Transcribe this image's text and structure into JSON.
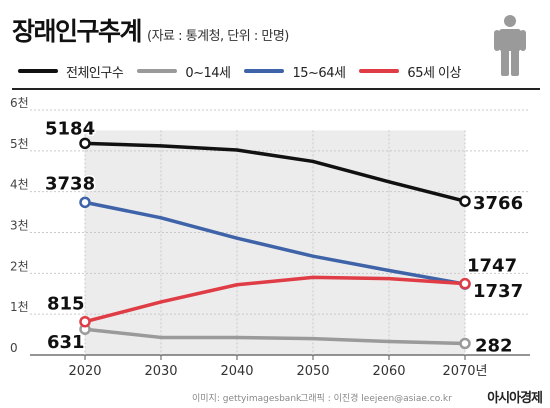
{
  "header": {
    "title": "장래인구추계",
    "subtitle": "(자료 : 통계청, 단위 : 만명)"
  },
  "icons": {
    "person": "person-silhouette-icon"
  },
  "colors": {
    "total": "#111111",
    "age_0_14": "#9a9a9a",
    "age_15_64": "#3f63a8",
    "age_65_plus": "#e03c45",
    "plot_band": "#ececec",
    "grid": "#c9c9c9"
  },
  "chart_data": {
    "type": "line",
    "x": [
      2020,
      2030,
      2040,
      2050,
      2060,
      2070
    ],
    "x_tick_labels": [
      "2020",
      "2030",
      "2040",
      "2050",
      "2060",
      "2070년"
    ],
    "y_ticks": [
      0,
      1000,
      2000,
      3000,
      4000,
      5000,
      6000
    ],
    "y_tick_labels": [
      "0",
      "1천",
      "2천",
      "3천",
      "4천",
      "5천",
      "6천"
    ],
    "ylim": [
      0,
      6000
    ],
    "grid": true,
    "legend_position": "top",
    "series": [
      {
        "key": "total",
        "name": "전체인구수",
        "values": [
          5184,
          5120,
          5020,
          4740,
          4240,
          3766
        ]
      },
      {
        "key": "age_0_14",
        "name": "0~14세",
        "values": [
          631,
          430,
          430,
          400,
          330,
          282
        ]
      },
      {
        "key": "age_15_64",
        "name": "15~64세",
        "values": [
          3738,
          3360,
          2860,
          2420,
          2070,
          1737
        ]
      },
      {
        "key": "age_65_plus",
        "name": "65세 이상",
        "values": [
          815,
          1300,
          1720,
          1900,
          1870,
          1747
        ]
      }
    ],
    "data_labels": [
      {
        "series": "total",
        "index": 0,
        "text": "5184"
      },
      {
        "series": "total",
        "index": 5,
        "text": "3766"
      },
      {
        "series": "age_15_64",
        "index": 0,
        "text": "3738"
      },
      {
        "series": "age_15_64",
        "index": 5,
        "text": "1737"
      },
      {
        "series": "age_65_plus",
        "index": 0,
        "text": "815"
      },
      {
        "series": "age_65_plus",
        "index": 5,
        "text": "1747"
      },
      {
        "series": "age_0_14",
        "index": 0,
        "text": "631"
      },
      {
        "series": "age_0_14",
        "index": 5,
        "text": "282"
      }
    ]
  },
  "footer": {
    "image_credit": "이미지: gettyimagesbank",
    "graphic_credit": "그래픽 : 이진경 leejeen@asiae.co.kr",
    "brand": "아시아경제"
  }
}
